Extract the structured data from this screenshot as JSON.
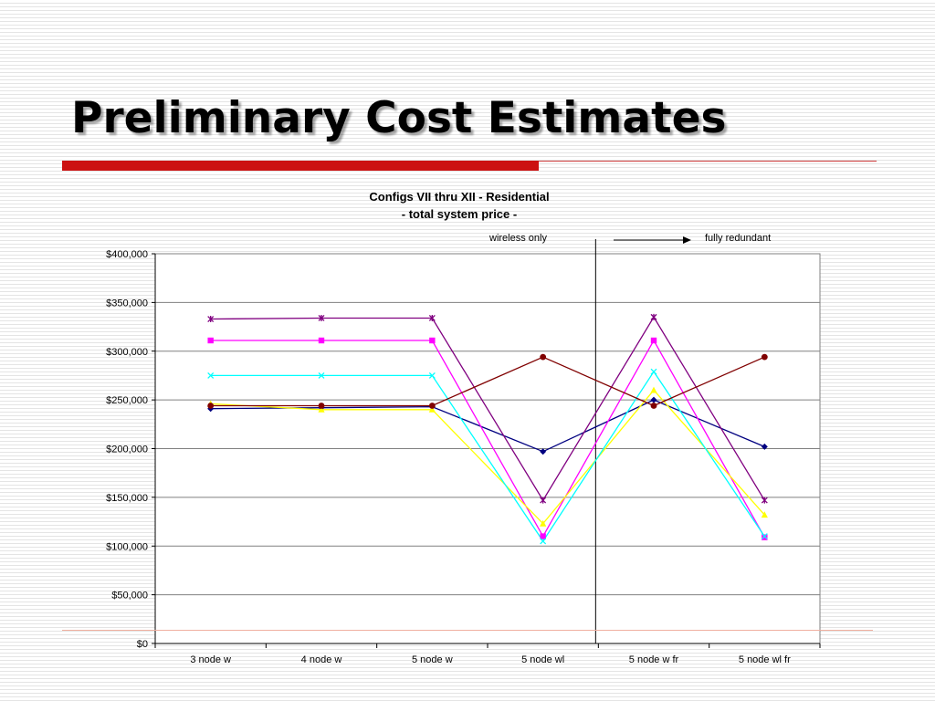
{
  "slide": {
    "title": "Preliminary Cost Estimates"
  },
  "colors": {
    "accent_red": "#cc1111",
    "rule_thin": "#d04040",
    "bottom_rule": "#f0b0a0"
  },
  "chart_data": {
    "type": "line",
    "title": "Configs VII thru XII - Residential",
    "subtitle": "- total system price -",
    "xlabel": "",
    "ylabel": "",
    "categories": [
      "3 node w",
      "4 node w",
      "5 node w",
      "5 node wl",
      "5 node w fr",
      "5 node wl fr"
    ],
    "ylim": [
      0,
      400000
    ],
    "yticks": [
      0,
      50000,
      100000,
      150000,
      200000,
      250000,
      300000,
      350000,
      400000
    ],
    "ytick_labels": [
      "$0",
      "$50,000",
      "$100,000",
      "$150,000",
      "$200,000",
      "$250,000",
      "$300,000",
      "$350,000",
      "$400,000"
    ],
    "grid": true,
    "legend": "none",
    "annotations": {
      "left_text": "wireless only",
      "right_text": "fully redundant"
    },
    "series": [
      {
        "color": "#000080",
        "marker": "diamond",
        "values": [
          241000,
          242000,
          243000,
          197000,
          250000,
          202000
        ]
      },
      {
        "color": "#ff00ff",
        "marker": "square",
        "values": [
          311000,
          311000,
          311000,
          110000,
          311000,
          109000
        ]
      },
      {
        "color": "#ffff00",
        "marker": "triangle",
        "values": [
          246000,
          240000,
          240000,
          123000,
          260000,
          132000
        ]
      },
      {
        "color": "#00ffff",
        "marker": "x",
        "values": [
          275000,
          275000,
          275000,
          105000,
          279000,
          110000
        ]
      },
      {
        "color": "#800080",
        "marker": "star",
        "values": [
          333000,
          334000,
          334000,
          147000,
          335000,
          147000
        ]
      },
      {
        "color": "#800000",
        "marker": "circle",
        "values": [
          244000,
          244000,
          244000,
          294000,
          244000,
          294000
        ]
      }
    ]
  }
}
